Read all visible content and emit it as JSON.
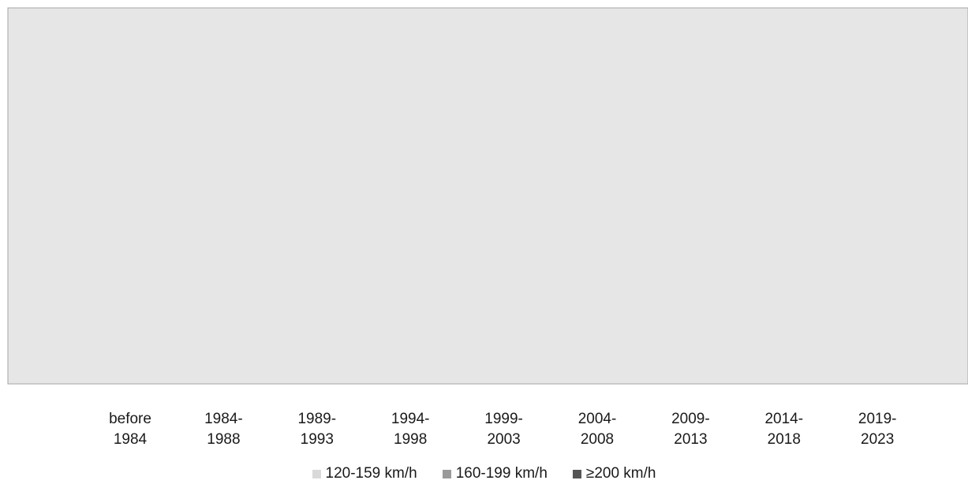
{
  "chart_data": {
    "type": "bar",
    "stacked": true,
    "categories": [
      [
        "before",
        "1984"
      ],
      [
        "1984-",
        "1988"
      ],
      [
        "1989-",
        "1993"
      ],
      [
        "1994-",
        "1998"
      ],
      [
        "1999-",
        "2003"
      ],
      [
        "2004-",
        "2008"
      ],
      [
        "2009-",
        "2013"
      ],
      [
        "2014-",
        "2018"
      ],
      [
        "2019-",
        "2023"
      ]
    ],
    "series": [
      {
        "name": "120-159 km/h",
        "color": "#d9d9d9",
        "values": [
          null,
          null,
          null,
          null,
          null,
          null,
          null,
          null,
          null
        ]
      },
      {
        "name": "160-199 km/h",
        "color": "#9a9a9a",
        "values": [
          null,
          null,
          null,
          null,
          null,
          null,
          null,
          null,
          null
        ]
      },
      {
        "name": "≥200 km/h",
        "color": "#555555",
        "values": [
          null,
          null,
          null,
          null,
          null,
          null,
          null,
          null,
          null
        ]
      }
    ],
    "plot_background": "#e6e6e6",
    "grid": false,
    "legend_position": "bottom-center"
  }
}
